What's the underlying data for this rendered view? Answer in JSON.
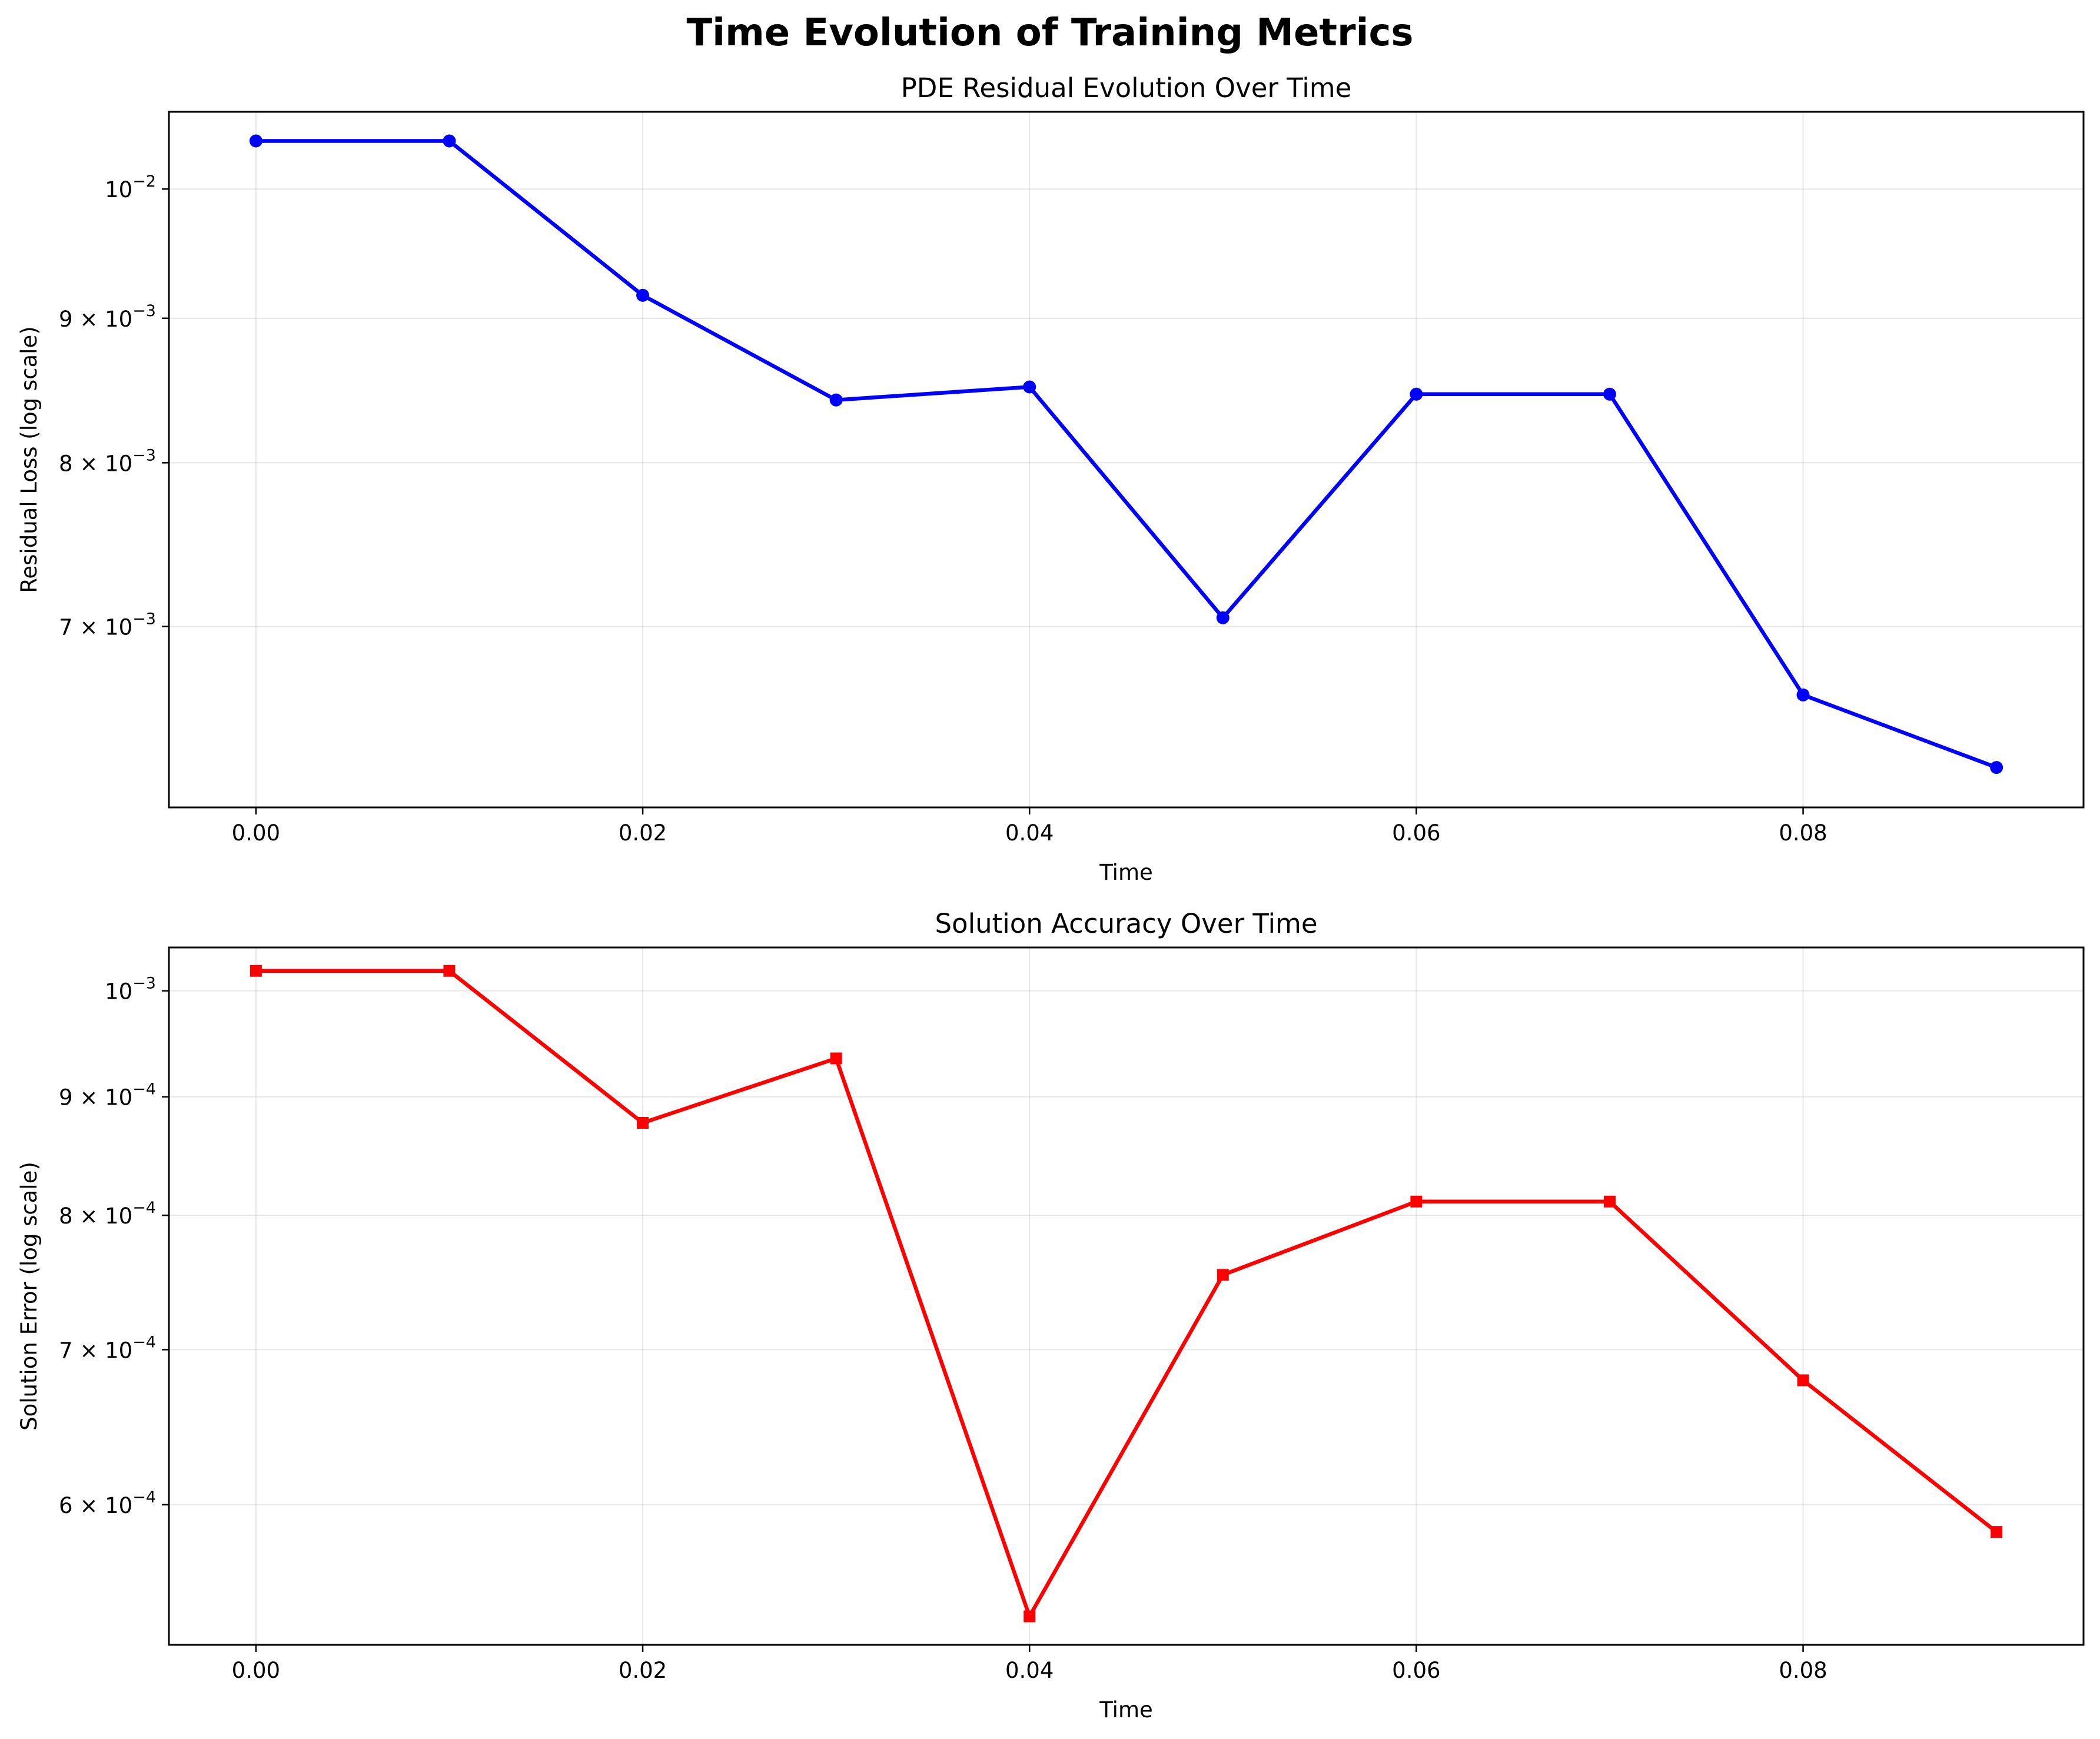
{
  "figure": {
    "title": "Time Evolution of Training Metrics"
  },
  "chart_data": [
    {
      "type": "line",
      "title": "PDE Residual Evolution Over Time",
      "xlabel": "Time",
      "ylabel": "Residual Loss (log scale)",
      "yscale": "log",
      "grid": true,
      "color": "#0000ff",
      "marker": "circle",
      "x": [
        0.0,
        0.01,
        0.02,
        0.03,
        0.04,
        0.05,
        0.06,
        0.07,
        0.08,
        0.09
      ],
      "y": [
        0.0104,
        0.0104,
        0.00917,
        0.00842,
        0.00851,
        0.00705,
        0.00846,
        0.00846,
        0.00662,
        0.00624
      ],
      "xlim": [
        -0.0045,
        0.0945
      ],
      "ylim": [
        0.00604,
        0.01065
      ],
      "xticks": [
        0.0,
        0.02,
        0.04,
        0.06,
        0.08
      ],
      "xtick_labels": [
        "0.00",
        "0.02",
        "0.04",
        "0.06",
        "0.08"
      ],
      "yticks": [
        0.01,
        0.009,
        0.008,
        0.007
      ],
      "ytick_labels": [
        {
          "mant": "10",
          "exp": "−2"
        },
        {
          "mant": "9 × 10",
          "exp": "−3"
        },
        {
          "mant": "8 × 10",
          "exp": "−3"
        },
        {
          "mant": "7 × 10",
          "exp": "−3"
        }
      ]
    },
    {
      "type": "line",
      "title": "Solution Accuracy Over Time",
      "xlabel": "Time",
      "ylabel": "Solution Error (log scale)",
      "yscale": "log",
      "grid": true,
      "color": "#ff0000",
      "marker": "square",
      "x": [
        0.0,
        0.01,
        0.02,
        0.03,
        0.04,
        0.05,
        0.06,
        0.07,
        0.08,
        0.09
      ],
      "y": [
        0.00102,
        0.00102,
        0.000877,
        0.000935,
        0.000537,
        0.000754,
        0.000811,
        0.000811,
        0.000679,
        0.000584
      ],
      "xlim": [
        -0.0045,
        0.0945
      ],
      "ylim": [
        0.000522,
        0.001044
      ],
      "xticks": [
        0.0,
        0.02,
        0.04,
        0.06,
        0.08
      ],
      "xtick_labels": [
        "0.00",
        "0.02",
        "0.04",
        "0.06",
        "0.08"
      ],
      "yticks": [
        0.001,
        0.0009,
        0.0008,
        0.0007,
        0.0006
      ],
      "ytick_labels": [
        {
          "mant": "10",
          "exp": "−3"
        },
        {
          "mant": "9 × 10",
          "exp": "−4"
        },
        {
          "mant": "8 × 10",
          "exp": "−4"
        },
        {
          "mant": "7 × 10",
          "exp": "−4"
        },
        {
          "mant": "6 × 10",
          "exp": "−4"
        }
      ]
    }
  ]
}
